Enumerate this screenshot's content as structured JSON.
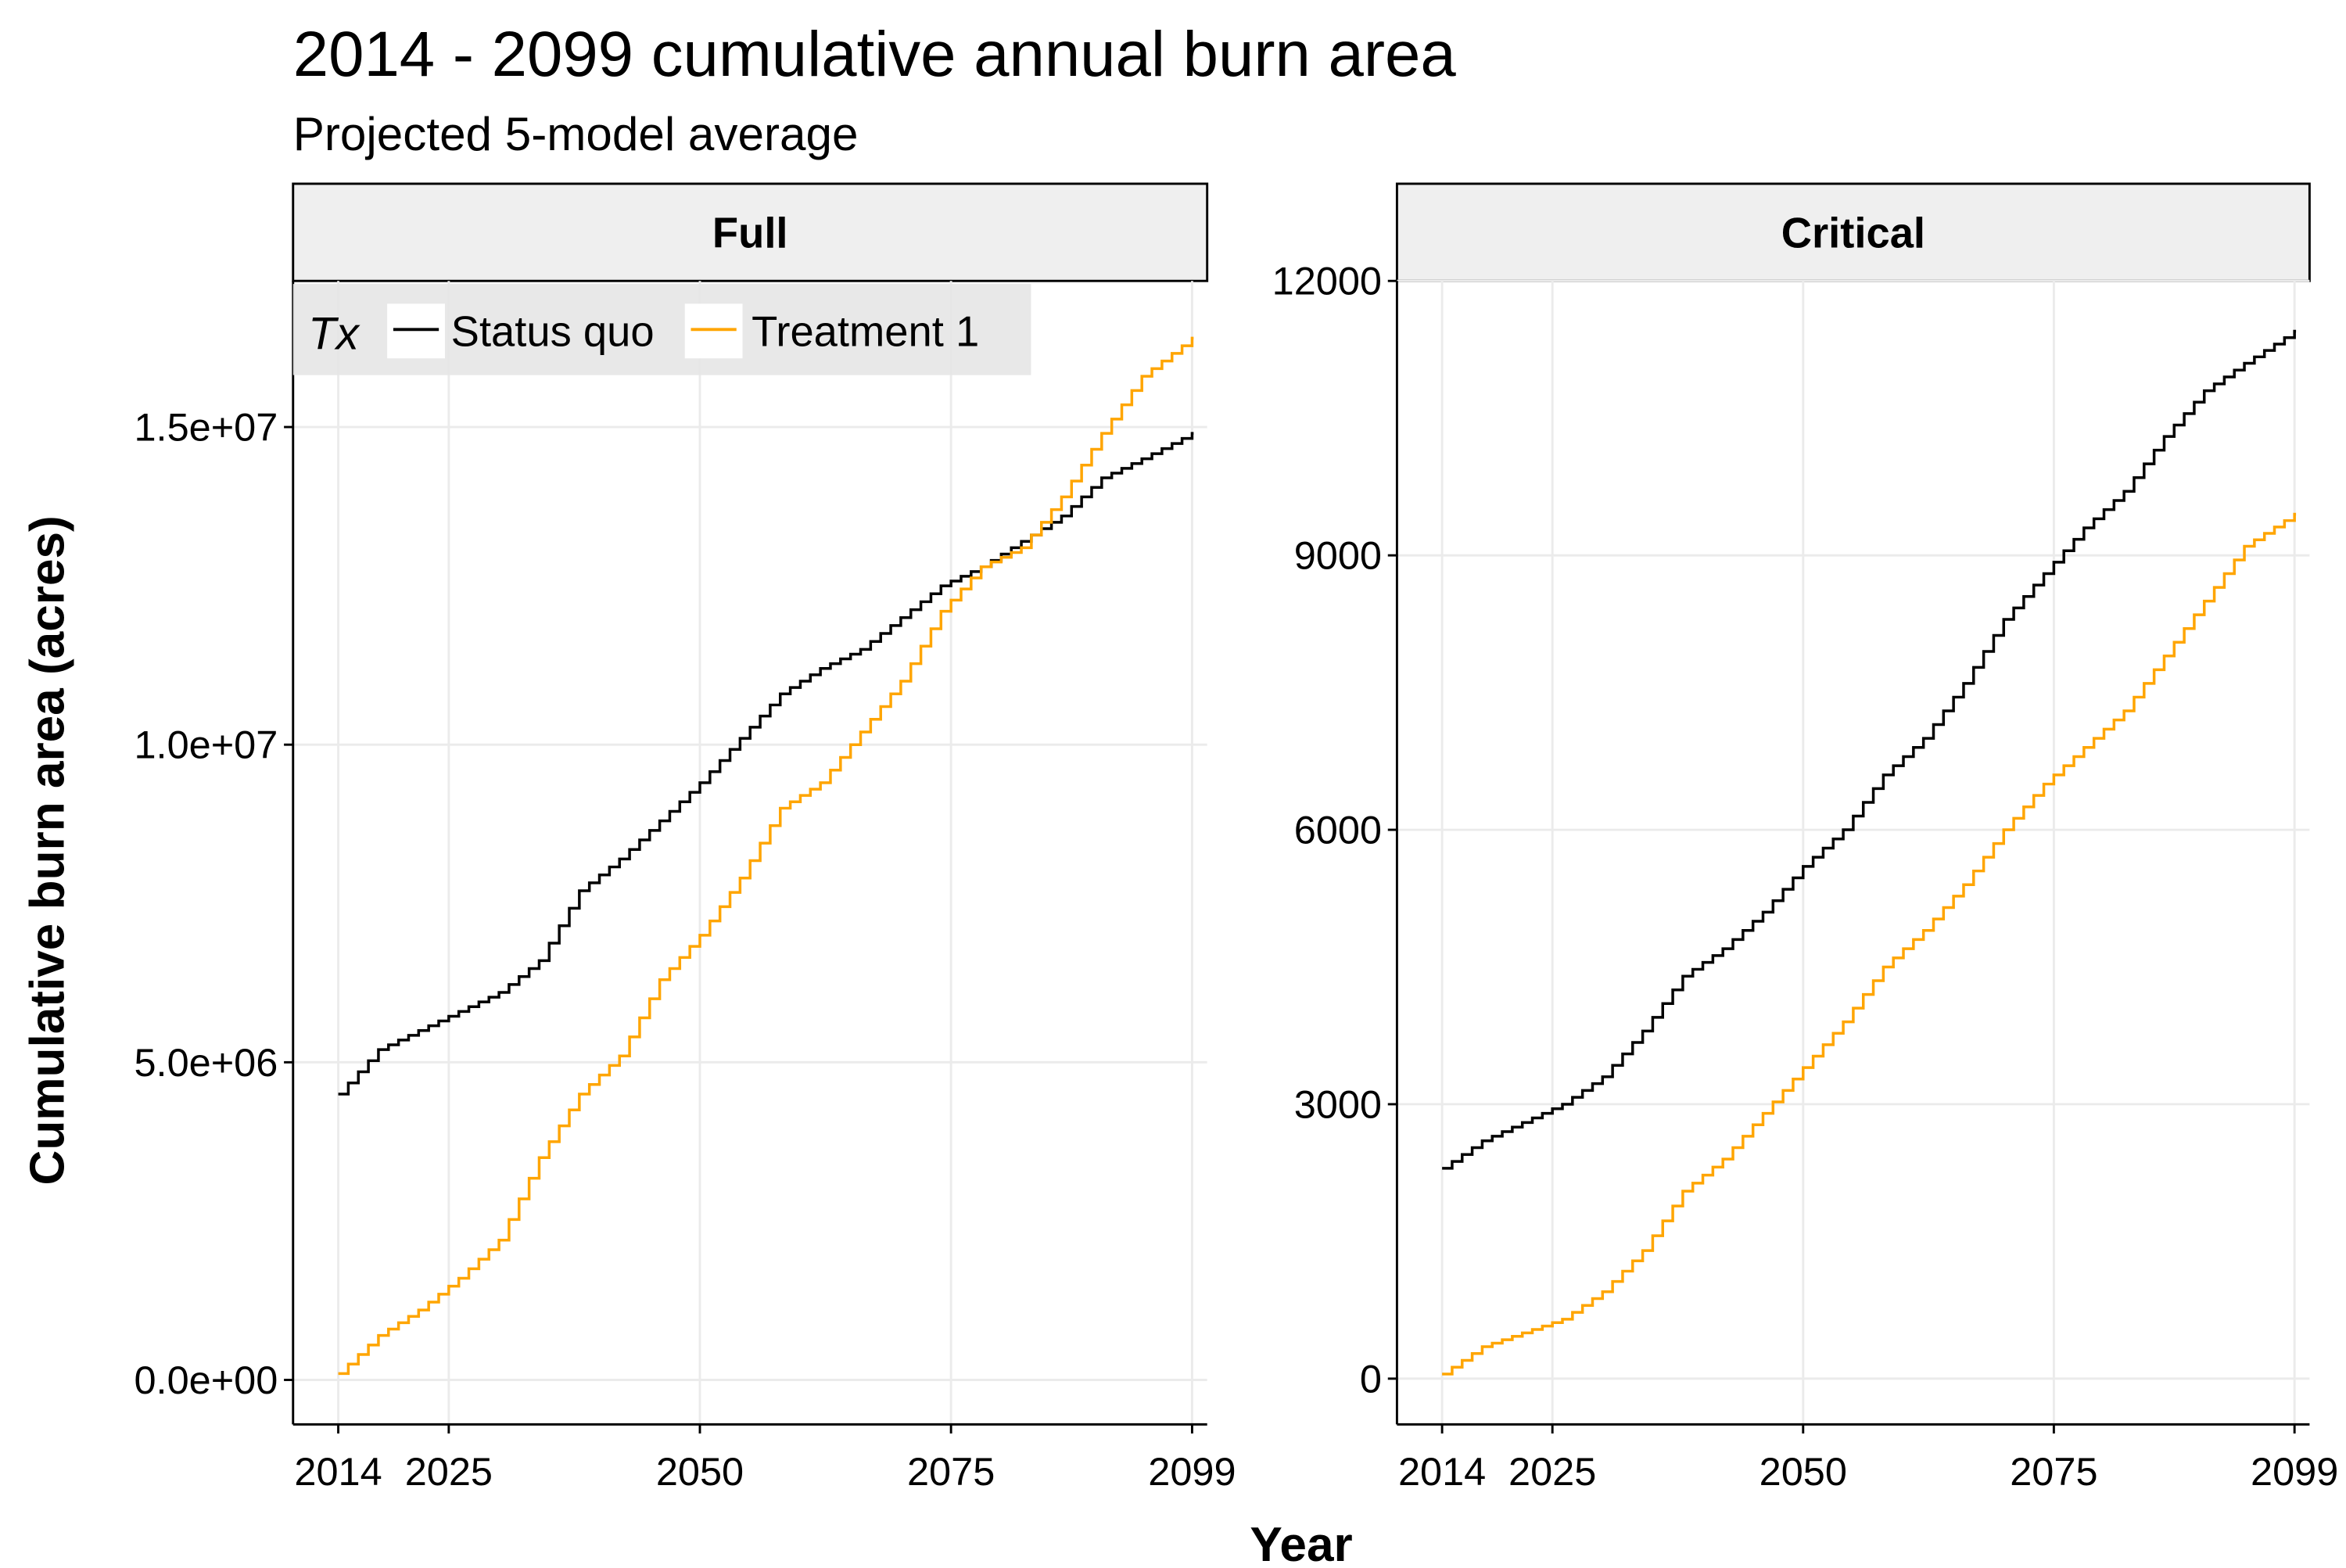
{
  "chart_data": {
    "type": "line",
    "step": true,
    "title": "2014 - 2099 cumulative annual burn area",
    "subtitle": "Projected 5-model average",
    "xlabel": "Year",
    "ylabel": "Cumulative burn area (acres)",
    "legend": {
      "title": "Tx",
      "placement": "top-left",
      "entries": [
        "Status quo",
        "Treatment 1"
      ]
    },
    "colors": {
      "Status quo": "#000000",
      "Treatment 1": "#ffa500"
    },
    "grid": true,
    "xlim": [
      2009.5,
      2100.5
    ],
    "x_ticks": [
      2014,
      2025,
      2050,
      2075,
      2099
    ],
    "anchor_years": [
      2014,
      2018,
      2022,
      2026,
      2030,
      2034,
      2038,
      2042,
      2046,
      2050,
      2054,
      2058,
      2062,
      2066,
      2070,
      2074,
      2078,
      2082,
      2086,
      2090,
      2094,
      2099
    ],
    "panels": [
      {
        "label": "Full",
        "ylim": [
          -700000,
          17300000
        ],
        "y_ticks": [
          0,
          5000000,
          10000000,
          15000000
        ],
        "y_tick_labels": [
          "0.0e+00",
          "5.0e+06",
          "1.0e+07",
          "1.5e+07"
        ],
        "series": [
          {
            "name": "Status quo",
            "values": [
              4500000,
              5200000,
              5500000,
              5800000,
              6100000,
              6600000,
              7700000,
              8200000,
              8800000,
              9400000,
              10100000,
              10800000,
              11200000,
              11500000,
              12000000,
              12500000,
              12800000,
              13200000,
              13600000,
              14200000,
              14500000,
              14900000
            ]
          },
          {
            "name": "Treatment 1",
            "values": [
              100000,
              700000,
              1100000,
              1600000,
              2200000,
              3500000,
              4500000,
              5100000,
              6300000,
              7000000,
              7900000,
              9000000,
              9400000,
              10200000,
              11000000,
              12100000,
              12800000,
              13100000,
              13900000,
              14900000,
              15800000,
              16400000
            ]
          }
        ]
      },
      {
        "label": "Critical",
        "ylim": [
          -500,
          12000
        ],
        "y_ticks": [
          0,
          3000,
          6000,
          9000,
          12000
        ],
        "y_tick_labels": [
          "0",
          "3000",
          "6000",
          "9000",
          "12000"
        ],
        "series": [
          {
            "name": "Status quo",
            "values": [
              2300,
              2600,
              2800,
              3000,
              3300,
              3800,
              4400,
              4700,
              5100,
              5600,
              6000,
              6600,
              7000,
              7600,
              8300,
              8800,
              9300,
              9700,
              10300,
              10800,
              11100,
              11450
            ]
          },
          {
            "name": "Treatment 1",
            "values": [
              50,
              350,
              500,
              650,
              950,
              1400,
              2050,
              2400,
              2900,
              3400,
              3900,
              4500,
              4900,
              5400,
              6000,
              6500,
              6900,
              7300,
              7900,
              8500,
              9100,
              9450
            ]
          }
        ]
      }
    ]
  }
}
